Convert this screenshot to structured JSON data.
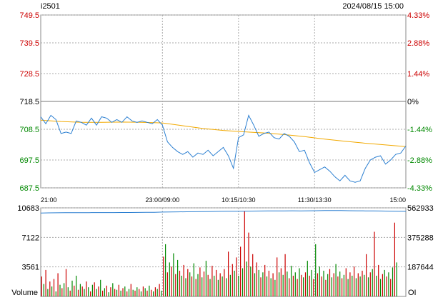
{
  "header": {
    "symbol": "i2501",
    "datetime": "2024/08/15 15:00"
  },
  "colors": {
    "up": "#cc0000",
    "down": "#008800",
    "price_line": "#2b7fd1",
    "avg_line": "#f2a900",
    "oi_line": "#2b7fd1",
    "grid": "#aaaaaa",
    "axis_text": "#000000"
  },
  "chart_data": [
    {
      "type": "line",
      "title": "",
      "x_tick_labels": [
        "21:00",
        "23:00/09:00",
        "10:15/10:30",
        "11:30/13:30",
        "15:00"
      ],
      "x_ticks_minutes": [
        0,
        120,
        195,
        270,
        360
      ],
      "x_range_minutes": [
        0,
        360
      ],
      "ylim": [
        687.5,
        749.5
      ],
      "y_tick_labels": [
        "749.5",
        "739.5",
        "728.5",
        "718.5",
        "708.5",
        "697.5",
        "687.5"
      ],
      "y_tick_values": [
        749.5,
        739.5,
        728.5,
        718.5,
        708.5,
        697.5,
        687.5
      ],
      "right_tick_labels": [
        "4.33%",
        "2.88%",
        "1.44%",
        "0%",
        "-1.44%",
        "-2.88%",
        "-4.33%"
      ],
      "reference_price": 718.5,
      "grid": true,
      "series": [
        {
          "key": "price",
          "x": [
            0,
            5,
            10,
            15,
            20,
            25,
            30,
            35,
            40,
            45,
            50,
            55,
            60,
            65,
            70,
            75,
            80,
            85,
            90,
            95,
            100,
            105,
            110,
            115,
            120,
            125,
            130,
            135,
            140,
            145,
            150,
            155,
            160,
            165,
            170,
            175,
            180,
            185,
            190,
            195,
            200,
            205,
            210,
            215,
            220,
            225,
            230,
            235,
            240,
            245,
            250,
            255,
            260,
            265,
            270,
            275,
            280,
            285,
            290,
            295,
            300,
            305,
            310,
            315,
            320,
            325,
            330,
            335,
            340,
            345,
            350,
            355,
            360
          ],
          "y": [
            713.0,
            710.5,
            713.5,
            712.0,
            707.0,
            707.5,
            707.0,
            711.5,
            711.0,
            710.0,
            712.5,
            710.0,
            713.0,
            712.5,
            711.0,
            712.0,
            711.0,
            713.0,
            711.5,
            711.0,
            711.5,
            711.0,
            710.5,
            712.0,
            710.0,
            704.0,
            702.0,
            700.5,
            699.5,
            700.5,
            698.5,
            700.0,
            699.5,
            701.0,
            699.0,
            700.5,
            702.0,
            699.0,
            694.5,
            705.5,
            706.5,
            713.5,
            710.0,
            706.0,
            707.0,
            707.5,
            705.5,
            705.0,
            707.0,
            706.0,
            704.0,
            700.5,
            701.0,
            696.5,
            693.0,
            694.0,
            695.0,
            693.5,
            691.5,
            690.0,
            692.0,
            690.0,
            689.5,
            690.0,
            694.5,
            697.5,
            698.5,
            699.0,
            696.0,
            697.5,
            699.5,
            700.0,
            702.5
          ]
        },
        {
          "key": "average",
          "x": [
            0,
            20,
            40,
            60,
            80,
            100,
            120,
            140,
            160,
            180,
            200,
            220,
            240,
            260,
            280,
            300,
            320,
            340,
            360
          ],
          "y": [
            711.8,
            711.3,
            711.0,
            711.0,
            711.1,
            711.0,
            710.8,
            709.8,
            708.8,
            708.1,
            707.6,
            707.2,
            706.6,
            705.9,
            705.0,
            704.2,
            703.5,
            702.9,
            702.3
          ]
        }
      ]
    },
    {
      "type": "bar",
      "title": "",
      "ylabel": "Volume",
      "ylabel_right": "OI",
      "ylim": [
        0,
        10683
      ],
      "y_tick_labels": [
        "10683",
        "7122",
        "3561"
      ],
      "y_tick_values": [
        10683,
        7122,
        3561
      ],
      "right_tick_labels": [
        "562933",
        "375288",
        "187644"
      ],
      "oi_range": [
        0,
        562933
      ],
      "bar_x_spacing_minutes": 2,
      "volume": [
        2400,
        1500,
        3200,
        900,
        1800,
        1200,
        2100,
        600,
        2800,
        1400,
        1000,
        1600,
        3300,
        1100,
        700,
        1900,
        1300,
        2500,
        800,
        1500,
        1200,
        900,
        1800,
        1100,
        600,
        1400,
        1700,
        900,
        1200,
        2000,
        700,
        1000,
        1300,
        500,
        1100,
        1600,
        900,
        800,
        1400,
        700,
        1000,
        1200,
        600,
        900,
        1500,
        800,
        700,
        1100,
        900,
        600,
        1200,
        1000,
        700,
        1300,
        800,
        600,
        1100,
        900,
        1500,
        700,
        4800,
        6300,
        2900,
        4100,
        3600,
        5200,
        2700,
        4400,
        3100,
        2500,
        3800,
        2200,
        3300,
        2900,
        2400,
        4000,
        2100,
        2700,
        3500,
        2300,
        3000,
        4300,
        2600,
        2100,
        3700,
        2500,
        3200,
        2000,
        2800,
        2400,
        3300,
        2200,
        5400,
        2600,
        3900,
        3100,
        4700,
        2500,
        6000,
        3400,
        10300,
        4200,
        7700,
        3600,
        5100,
        2800,
        4100,
        3200,
        2300,
        2900,
        3800,
        2400,
        3100,
        2200,
        2800,
        2000,
        4700,
        2900,
        3400,
        2600,
        5100,
        3000,
        2200,
        3700,
        2500,
        2900,
        2100,
        3400,
        2600,
        2300,
        2900,
        4300,
        2500,
        3200,
        2100,
        6300,
        2800,
        3600,
        2400,
        3100,
        2000,
        2700,
        3300,
        2300,
        2800,
        3900,
        2400,
        3000,
        2200,
        2600,
        3400,
        2100,
        2900,
        2500,
        3600,
        2200,
        2800,
        2400,
        3100,
        2600,
        5100,
        2300,
        2900,
        3300,
        7800,
        2500,
        3800,
        2100,
        2700,
        3200,
        2400,
        2900,
        2100,
        3500,
        8900,
        4100
      ],
      "open_interest": [
        530000,
        531000,
        531500,
        532000,
        532000,
        532500,
        532500,
        533000,
        533000,
        533000,
        533500,
        533500,
        534000,
        534500,
        535000,
        536000,
        537000,
        537500,
        538000,
        538500,
        539000,
        540000,
        540500,
        541000,
        541500,
        542000,
        542500,
        543000,
        543500,
        544000,
        544000,
        544500,
        544000,
        544500,
        545000,
        545500,
        546000,
        545500,
        545000,
        544500,
        544000,
        543500,
        543000,
        542000,
        541000,
        540500
      ]
    }
  ]
}
